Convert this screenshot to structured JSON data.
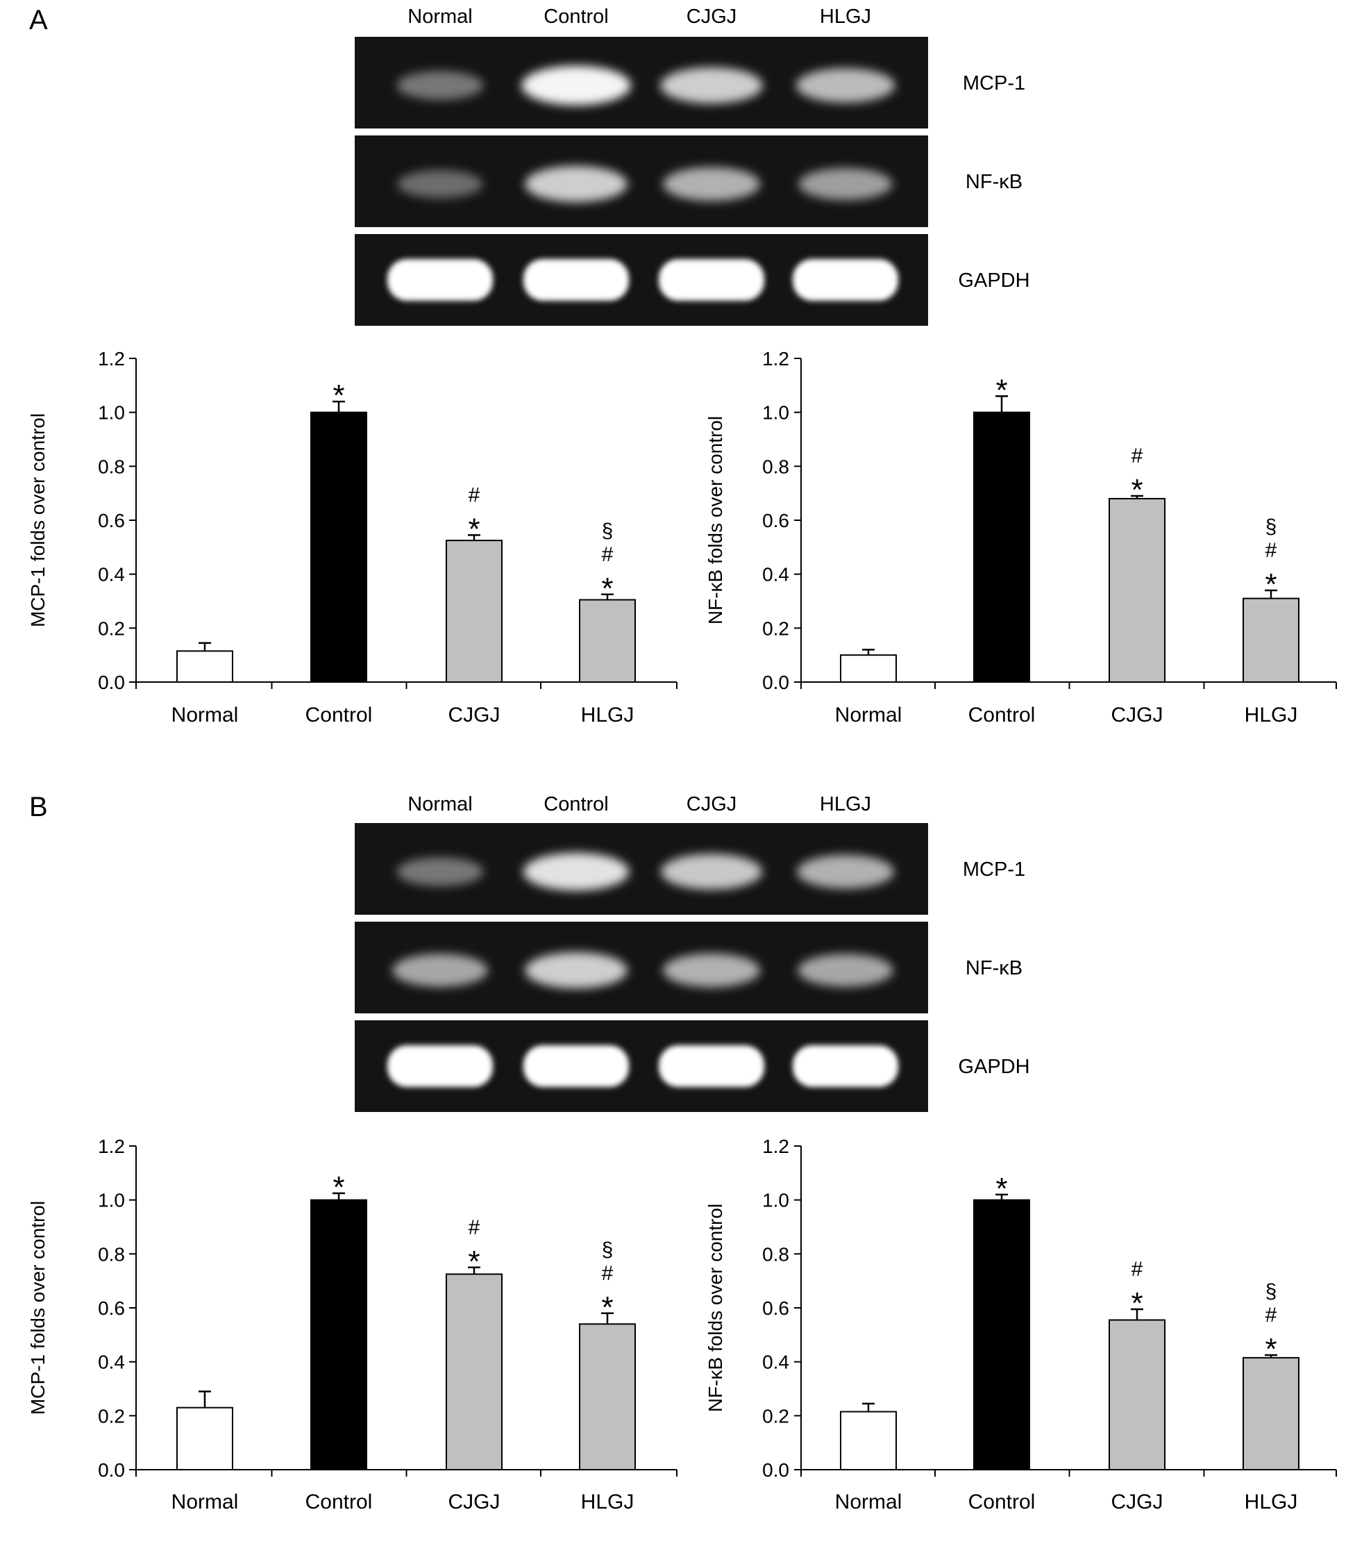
{
  "panels": [
    {
      "letter": "A",
      "gel": {
        "lanes": [
          "Normal",
          "Control",
          "CJGJ",
          "HLGJ"
        ],
        "rows": [
          {
            "label": "MCP-1",
            "intensity": [
              0.3,
              0.95,
              0.75,
              0.65
            ]
          },
          {
            "label": "NF-κB",
            "intensity": [
              0.25,
              0.75,
              0.6,
              0.5
            ]
          },
          {
            "label": "GAPDH",
            "intensity": [
              1.0,
              1.0,
              1.0,
              1.0
            ]
          }
        ]
      }
    },
    {
      "letter": "B",
      "gel": {
        "lanes": [
          "Normal",
          "Control",
          "CJGJ",
          "HLGJ"
        ],
        "rows": [
          {
            "label": "MCP-1",
            "intensity": [
              0.3,
              0.85,
              0.72,
              0.6
            ]
          },
          {
            "label": "NF-κB",
            "intensity": [
              0.55,
              0.75,
              0.6,
              0.55
            ]
          },
          {
            "label": "GAPDH",
            "intensity": [
              1.0,
              1.0,
              1.0,
              1.0
            ]
          }
        ]
      }
    }
  ],
  "chart_data": [
    {
      "panel": "A",
      "type": "bar",
      "categories": [
        "Normal",
        "Control",
        "CJGJ",
        "HLGJ"
      ],
      "values": [
        0.115,
        1.0,
        0.525,
        0.305
      ],
      "errors": [
        0.03,
        0.04,
        0.02,
        0.02
      ],
      "colors": [
        "#ffffff",
        "#000000",
        "#c0c0c0",
        "#c0c0c0"
      ],
      "annotations": [
        [],
        [
          "*"
        ],
        [
          "*",
          "#"
        ],
        [
          "*",
          "#",
          "§"
        ]
      ],
      "ylabel": "MCP-1 folds over control",
      "ylim": [
        0,
        1.2
      ],
      "yticks": [
        "0.0",
        "0.2",
        "0.4",
        "0.6",
        "0.8",
        "1.0",
        "1.2"
      ]
    },
    {
      "panel": "A",
      "type": "bar",
      "categories": [
        "Normal",
        "Control",
        "CJGJ",
        "HLGJ"
      ],
      "values": [
        0.1,
        1.0,
        0.68,
        0.31
      ],
      "errors": [
        0.02,
        0.06,
        0.01,
        0.03
      ],
      "colors": [
        "#ffffff",
        "#000000",
        "#c0c0c0",
        "#c0c0c0"
      ],
      "annotations": [
        [],
        [
          "*"
        ],
        [
          "*",
          "#"
        ],
        [
          "*",
          "#",
          "§"
        ]
      ],
      "ylabel": "NF-κB folds over control",
      "ylim": [
        0,
        1.2
      ],
      "yticks": [
        "0.0",
        "0.2",
        "0.4",
        "0.6",
        "0.8",
        "1.0",
        "1.2"
      ]
    },
    {
      "panel": "B",
      "type": "bar",
      "categories": [
        "Normal",
        "Control",
        "CJGJ",
        "HLGJ"
      ],
      "values": [
        0.23,
        1.0,
        0.725,
        0.54
      ],
      "errors": [
        0.06,
        0.025,
        0.025,
        0.04
      ],
      "colors": [
        "#ffffff",
        "#000000",
        "#c0c0c0",
        "#c0c0c0"
      ],
      "annotations": [
        [],
        [
          "*"
        ],
        [
          "*",
          "#"
        ],
        [
          "*",
          "#",
          "§"
        ]
      ],
      "ylabel": "MCP-1 folds over control",
      "ylim": [
        0,
        1.2
      ],
      "yticks": [
        "0.0",
        "0.2",
        "0.4",
        "0.6",
        "0.8",
        "1.0",
        "1.2"
      ]
    },
    {
      "panel": "B",
      "type": "bar",
      "categories": [
        "Normal",
        "Control",
        "CJGJ",
        "HLGJ"
      ],
      "values": [
        0.215,
        1.0,
        0.555,
        0.415
      ],
      "errors": [
        0.03,
        0.02,
        0.04,
        0.01
      ],
      "colors": [
        "#ffffff",
        "#000000",
        "#c0c0c0",
        "#c0c0c0"
      ],
      "annotations": [
        [],
        [
          "*"
        ],
        [
          "*",
          "#"
        ],
        [
          "*",
          "#",
          "§"
        ]
      ],
      "ylabel": "NF-κB folds over control",
      "ylim": [
        0,
        1.2
      ],
      "yticks": [
        "0.0",
        "0.2",
        "0.4",
        "0.6",
        "0.8",
        "1.0",
        "1.2"
      ]
    }
  ]
}
